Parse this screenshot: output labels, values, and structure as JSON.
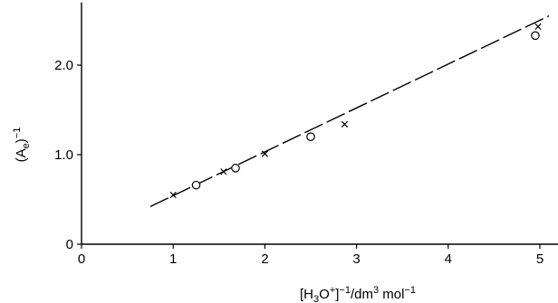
{
  "chart_data": {
    "type": "scatter",
    "xlabel": {
      "prefix": "[H",
      "sub1": "3",
      "mid": "O",
      "sup1": "+",
      "mid2": "]",
      "sup2": "−1",
      "mid3": "/dm",
      "sup3": "3",
      "mid4": " mol",
      "sup4": "−1"
    },
    "ylabel": {
      "prefix": "(A",
      "sub1": "e",
      "mid": ")",
      "sup1": "−1"
    },
    "xlim": [
      0,
      5.2
    ],
    "ylim": [
      0,
      2.7
    ],
    "xticks": [
      0,
      1,
      2,
      3,
      4,
      5
    ],
    "xtick_labels": [
      "0",
      "1",
      "2",
      "3",
      "4",
      "5"
    ],
    "yticks": [
      0,
      1.0,
      2.0
    ],
    "ytick_labels": [
      "0",
      "1.0",
      "2.0"
    ],
    "grid": false,
    "line_style": "dashed",
    "series": [
      {
        "marker": "cross",
        "points": [
          {
            "x": 1.0,
            "y": 0.55
          },
          {
            "x": 1.25,
            "y": 0.66
          },
          {
            "x": 1.55,
            "y": 0.81
          },
          {
            "x": 2.0,
            "y": 1.01
          },
          {
            "x": 2.87,
            "y": 1.34
          },
          {
            "x": 4.98,
            "y": 2.43
          }
        ]
      },
      {
        "marker": "circle",
        "points": [
          {
            "x": 1.25,
            "y": 0.66
          },
          {
            "x": 1.68,
            "y": 0.85
          },
          {
            "x": 2.5,
            "y": 1.2
          },
          {
            "x": 4.95,
            "y": 2.33
          }
        ]
      }
    ],
    "fit_line": [
      {
        "x": 0.75,
        "y": 0.42
      },
      {
        "x": 5.1,
        "y": 2.55
      }
    ]
  }
}
